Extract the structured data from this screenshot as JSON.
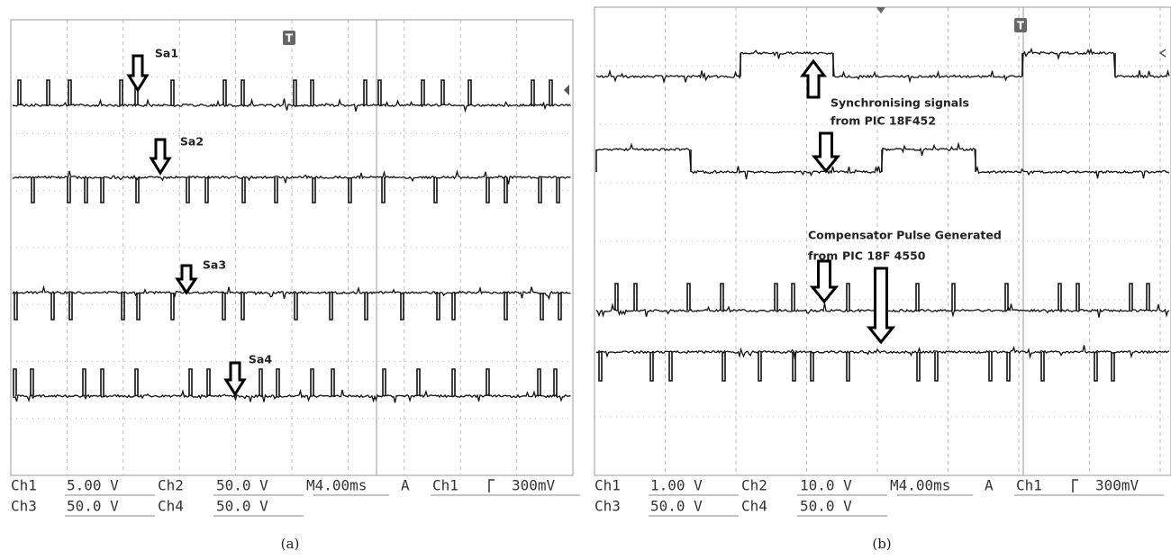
{
  "panels": [
    {
      "caption": "(a)",
      "trigger_marker": "T",
      "labels": [
        "Sa1",
        "Sa2",
        "Sa3",
        "Sa4"
      ],
      "status": {
        "row1": [
          "Ch1",
          "5.00 V",
          "Ch2",
          "50.0 V",
          "M4.00ms",
          "A",
          "Ch1",
          "300mV"
        ],
        "row2": [
          "Ch3",
          "50.0 V",
          "Ch4",
          "50.0 V"
        ]
      }
    },
    {
      "caption": "(b)",
      "trigger_marker": "T",
      "annotations": [
        "Synchronising signals",
        "from PIC 18F452",
        "Compensator Pulse Generated",
        "from",
        "PIC 18F 4550"
      ],
      "status": {
        "row1": [
          "Ch1",
          "1.00 V",
          "Ch2",
          "10.0 V",
          "M4.00ms",
          "A",
          "Ch1",
          "300mV"
        ],
        "row2": [
          "Ch3",
          "50.0 V",
          "Ch4",
          "50.0 V"
        ]
      }
    }
  ]
}
